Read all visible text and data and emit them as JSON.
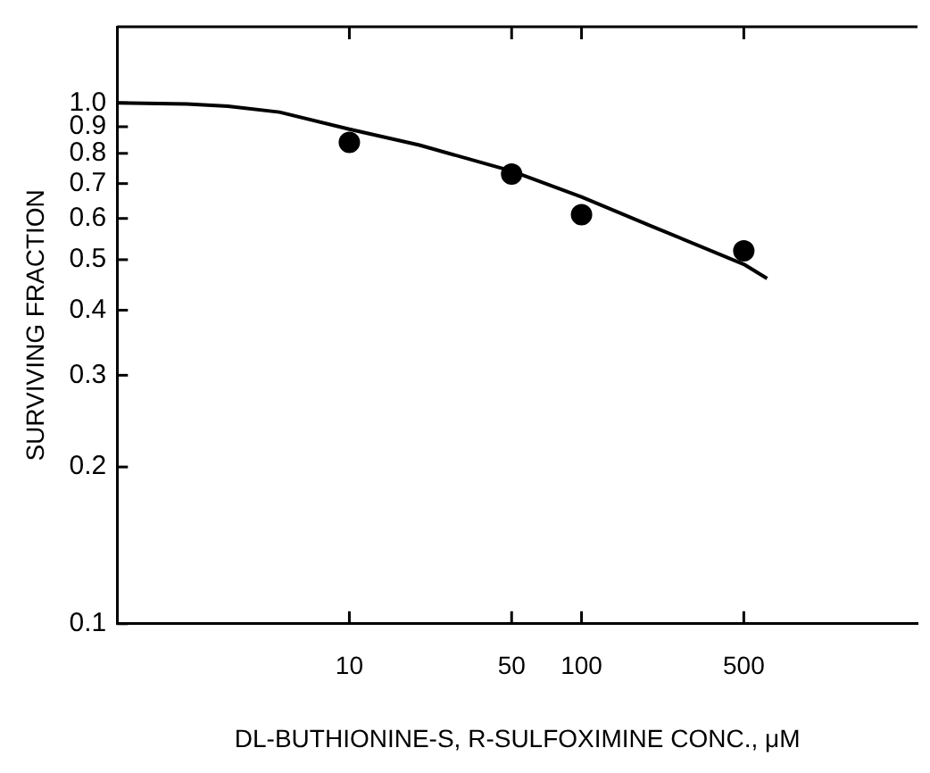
{
  "chart_data": {
    "type": "scatter",
    "xlabel": "DL-BUTHIONINE-S, R-SULFOXIMINE CONC., μM",
    "ylabel": "SURVIVING FRACTION",
    "log": "xy",
    "grid": false,
    "legend": false,
    "xlim": [
      1,
      2800
    ],
    "xticks": [
      {
        "value": 10,
        "label": "10"
      },
      {
        "value": 50,
        "label": "50"
      },
      {
        "value": 100,
        "label": "100"
      },
      {
        "value": 500,
        "label": "500"
      }
    ],
    "ylim": [
      0.1,
      1.4
    ],
    "yticks": [
      {
        "value": 0.1,
        "label": "0.1"
      },
      {
        "value": 0.2,
        "label": "0.2"
      },
      {
        "value": 0.3,
        "label": "0.3"
      },
      {
        "value": 0.4,
        "label": "0.4"
      },
      {
        "value": 0.5,
        "label": "0.5"
      },
      {
        "value": 0.6,
        "label": "0.6"
      },
      {
        "value": 0.7,
        "label": "0.7"
      },
      {
        "value": 0.8,
        "label": "0.8"
      },
      {
        "value": 0.9,
        "label": "0.9"
      },
      {
        "value": 1,
        "label": "1.0"
      }
    ],
    "series": [
      {
        "color": "#000000",
        "marker": "circle",
        "x": [
          10,
          50,
          100,
          500
        ],
        "values": [
          0.84,
          0.73,
          0.61,
          0.52
        ]
      },
      {
        "type": "line",
        "color": "#000000",
        "marker": "none",
        "line_style": "solid",
        "x": [
          1,
          2,
          3,
          5,
          10,
          20,
          50,
          100,
          200,
          500,
          630
        ],
        "values": [
          1.0,
          0.995,
          0.985,
          0.96,
          0.89,
          0.83,
          0.74,
          0.66,
          0.58,
          0.49,
          0.46
        ]
      }
    ]
  }
}
